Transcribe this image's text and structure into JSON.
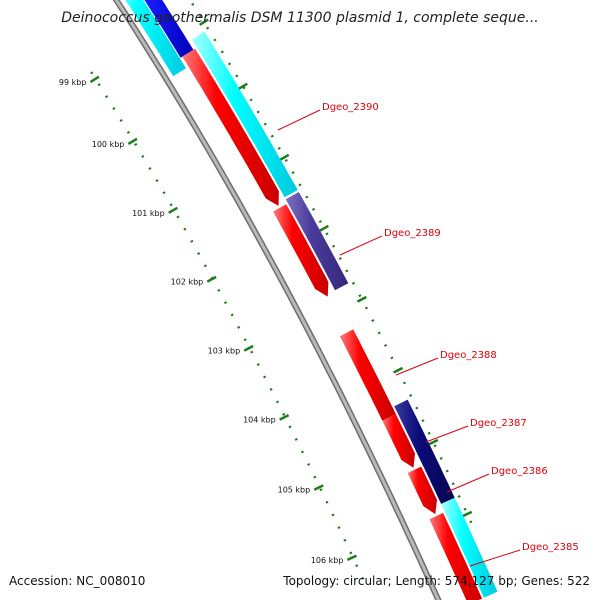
{
  "title": "Deinococcus geothermalis DSM 11300 plasmid 1, complete seque...",
  "footer": {
    "accession": "Accession: NC_008010",
    "summary": "Topology: circular; Length: 574,127 bp; Genes: 522"
  },
  "colors": {
    "backbone": "#8c8c8c",
    "tick": "#1a7f1a",
    "forward_gene": "#ff0000",
    "reverse_gene_cyan": "#00ffff",
    "reverse_gene_blue": "#1a1aff",
    "reverse_gene_purple": "#4b3c9c",
    "reverse_gene_navy": "#0b0b7a",
    "label": "#e0000a"
  },
  "ticks": [
    "99 kbp",
    "100 kbp",
    "101 kbp",
    "102 kbp",
    "103 kbp",
    "104 kbp",
    "105 kbp",
    "106 kbp"
  ],
  "gene_labels": [
    "Dgeo_2390",
    "Dgeo_2389",
    "Dgeo_2388",
    "Dgeo_2387",
    "Dgeo_2386",
    "Dgeo_2385"
  ]
}
